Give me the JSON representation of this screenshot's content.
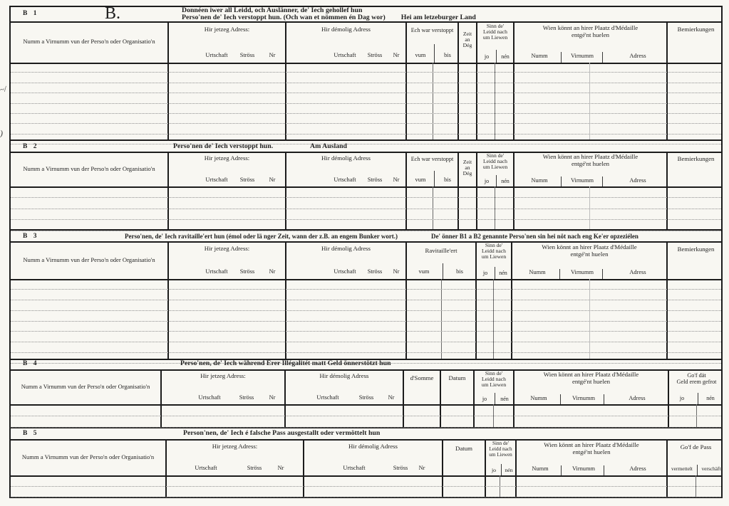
{
  "page": {
    "big_letter": "B.",
    "title_line1": "Donnéen iwer all Leidd, och Auslänner, de' Iech gehollef hun",
    "title_line2": "Perso'nen de' Iech verstoppt hun. (Och wan et nömmen én Dag wor)",
    "title_line2_right": "Hei am letzeburger Land"
  },
  "labels": {
    "name_col": "Numm a Virnumm vun der Perso'n oder Organisatio'n",
    "jetzeg": "Hir jetzeg Adress:",
    "demolig": "Hir démolig Adress",
    "urtschaft": "Urtschaft",
    "stross": "Ströss",
    "nr": "Nr",
    "verstoppt": "Ech war verstoppt",
    "vum": "vum",
    "bis": "bis",
    "zeit_1": "Zeit",
    "zeit_2": "an",
    "zeit_3": "Dég",
    "sinn_1": "Sinn  de'",
    "sinn_2": "Leidd  nach",
    "sinn_3": "um Liewen",
    "jo": "jo",
    "nen": "nén",
    "wien_1": "Wien könnt an hirer Plaatz d'Médaille",
    "wien_2": "entgé'nt huelen",
    "numm": "Numm",
    "virnumm": "Virnumm",
    "adress": "Adress",
    "bemierkungen": "Bemierkungen",
    "ravitailleert": "Ravitaille'ert",
    "somme": "d'Somme",
    "datum": "Datum",
    "gof_geld_1": "Go'f  dät",
    "gof_geld_2": "Geld  erem  gefrot",
    "gof_pass": "Go'f de Pass",
    "vermettelt": "vermettelt",
    "verschaft": "verschäft"
  },
  "sections": {
    "b1": {
      "label": "B 1",
      "rows": 8
    },
    "b2": {
      "label": "B 2",
      "title": "Perso'nen de' Iech verstoppt hun.",
      "title_right": "Am Ausland",
      "rows": 4
    },
    "b3": {
      "label": "B 3",
      "title": "Perso'nen, de' Iech ravitaille'ert hun (émol oder lä nger Zeit, wann der z.B. an engem Bunker wort.)",
      "title_right": "De' önner B1 a B2 genannte Perso'nen sin hei nöt nach eng Ke'er opzeziélen",
      "rows": 8
    },
    "b4": {
      "label": "B 4",
      "title": "Perso'nen, de' Iech während Erer Illégalitét matt Geld önnerstötzt hun",
      "rows": 2
    },
    "b5": {
      "label": "B 5",
      "title": "Person'nen, de' Iech é falsche Pass ausgestallt oder vermöttelt hun",
      "rows": 2
    }
  },
  "margin_marks": {
    "mark1": "~/",
    "mark2": ")"
  }
}
